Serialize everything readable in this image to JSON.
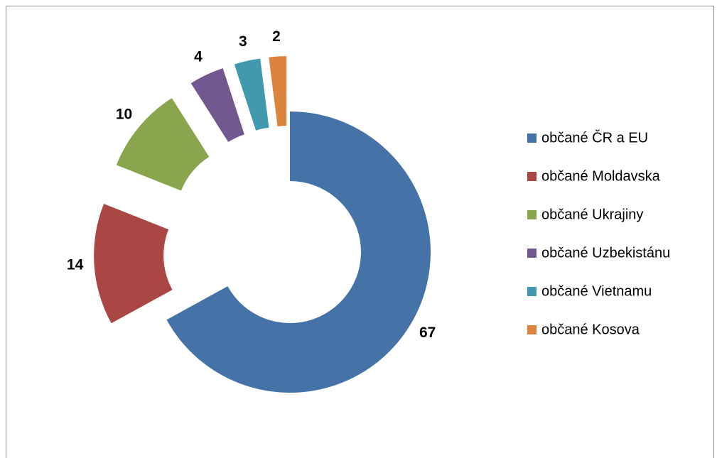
{
  "chart_data": {
    "type": "donut",
    "categories": [
      "občané ČR a EU",
      "občané Moldavska",
      "občané Ukrajiny",
      "občané Uzbekistánu",
      "občané Vietnamu",
      "občané Kosova"
    ],
    "values": [
      67,
      14,
      10,
      4,
      3,
      2
    ],
    "colors": [
      "#4572a7",
      "#aa4643",
      "#89a54e",
      "#71588f",
      "#4198af",
      "#db843d"
    ],
    "legend": "right"
  }
}
